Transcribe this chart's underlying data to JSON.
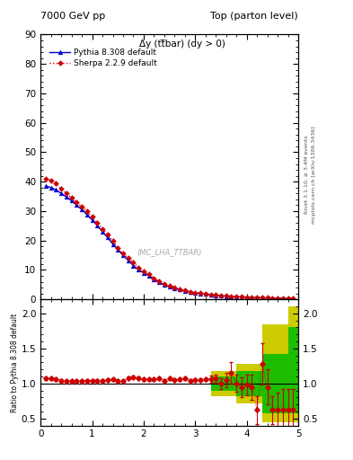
{
  "title_left": "7000 GeV pp",
  "title_right": "Top (parton level)",
  "plot_title": "Δy (tt̅bar) (dy > 0)",
  "ylabel_ratio": "Ratio to Pythia 8.308 default",
  "right_label_top": "Rivet 3.1.10, ≥ 3.4M events",
  "right_label_bot": "mcplots.cern.ch [arXiv:1306.3436]",
  "watermark": "(MC_LHA_TTBAR)",
  "xlim": [
    0,
    5.0
  ],
  "ylim_main": [
    0,
    90
  ],
  "ylim_ratio": [
    0.4,
    2.2
  ],
  "yticks_main": [
    0,
    10,
    20,
    30,
    40,
    50,
    60,
    70,
    80,
    90
  ],
  "yticks_ratio": [
    0.5,
    1.0,
    1.5,
    2.0
  ],
  "pythia_x": [
    0.1,
    0.2,
    0.3,
    0.4,
    0.5,
    0.6,
    0.7,
    0.8,
    0.9,
    1.0,
    1.1,
    1.2,
    1.3,
    1.4,
    1.5,
    1.6,
    1.7,
    1.8,
    1.9,
    2.0,
    2.1,
    2.2,
    2.3,
    2.4,
    2.5,
    2.6,
    2.7,
    2.8,
    2.9,
    3.0,
    3.1,
    3.2,
    3.3,
    3.4,
    3.5,
    3.6,
    3.7,
    3.8,
    3.9,
    4.0,
    4.1,
    4.2,
    4.3,
    4.4,
    4.5,
    4.6,
    4.7,
    4.8,
    4.9
  ],
  "pythia_y": [
    38.5,
    38.0,
    37.2,
    36.0,
    34.8,
    33.5,
    32.0,
    30.5,
    28.8,
    27.0,
    25.0,
    23.0,
    21.0,
    18.8,
    17.0,
    15.0,
    13.2,
    11.5,
    10.0,
    9.0,
    8.0,
    6.8,
    5.8,
    5.0,
    4.2,
    3.8,
    3.3,
    2.8,
    2.5,
    2.2,
    2.0,
    1.8,
    1.6,
    1.4,
    1.2,
    1.1,
    1.0,
    0.9,
    0.8,
    0.7,
    0.65,
    0.6,
    0.55,
    0.5,
    0.45,
    0.4,
    0.35,
    0.3,
    0.25
  ],
  "sherpa_x": [
    0.1,
    0.2,
    0.3,
    0.4,
    0.5,
    0.6,
    0.7,
    0.8,
    0.9,
    1.0,
    1.1,
    1.2,
    1.3,
    1.4,
    1.5,
    1.6,
    1.7,
    1.8,
    1.9,
    2.0,
    2.1,
    2.2,
    2.3,
    2.4,
    2.5,
    2.6,
    2.7,
    2.8,
    2.9,
    3.0,
    3.1,
    3.2,
    3.3,
    3.4,
    3.5,
    3.6,
    3.7,
    3.8,
    3.9,
    4.0,
    4.1,
    4.2,
    4.3,
    4.4,
    4.5,
    4.6,
    4.7,
    4.8,
    4.9
  ],
  "sherpa_y": [
    41.0,
    40.5,
    39.5,
    37.5,
    36.0,
    34.5,
    33.0,
    31.5,
    30.0,
    28.0,
    26.0,
    24.0,
    22.0,
    20.0,
    17.5,
    15.5,
    14.2,
    12.5,
    10.8,
    9.5,
    8.5,
    7.2,
    6.2,
    5.2,
    4.5,
    4.0,
    3.5,
    3.0,
    2.6,
    2.3,
    2.1,
    1.9,
    1.7,
    1.5,
    1.3,
    1.15,
    1.05,
    0.95,
    0.85,
    0.75,
    0.7,
    0.65,
    0.6,
    0.55,
    0.5,
    0.45,
    0.4,
    0.35,
    0.3
  ],
  "ratio_x": [
    0.1,
    0.2,
    0.3,
    0.4,
    0.5,
    0.6,
    0.7,
    0.8,
    0.9,
    1.0,
    1.1,
    1.2,
    1.3,
    1.4,
    1.5,
    1.6,
    1.7,
    1.8,
    1.9,
    2.0,
    2.1,
    2.2,
    2.3,
    2.4,
    2.5,
    2.6,
    2.7,
    2.8,
    2.9,
    3.0,
    3.1,
    3.2,
    3.3,
    3.4,
    3.5,
    3.6,
    3.7,
    3.8,
    3.9,
    4.0,
    4.1,
    4.2,
    4.3,
    4.4,
    4.5,
    4.6,
    4.7,
    4.8,
    4.9
  ],
  "ratio_y": [
    1.07,
    1.07,
    1.06,
    1.04,
    1.03,
    1.03,
    1.03,
    1.03,
    1.04,
    1.04,
    1.04,
    1.04,
    1.05,
    1.06,
    1.03,
    1.03,
    1.08,
    1.09,
    1.08,
    1.06,
    1.06,
    1.06,
    1.07,
    1.04,
    1.07,
    1.05,
    1.06,
    1.07,
    1.04,
    1.05,
    1.05,
    1.06,
    1.06,
    1.07,
    1.0,
    1.05,
    1.15,
    1.0,
    0.95,
    0.98,
    0.95,
    0.62,
    1.28,
    0.95,
    0.62,
    0.62,
    0.62,
    0.62,
    0.62
  ],
  "ratio_err": [
    0.02,
    0.02,
    0.02,
    0.02,
    0.02,
    0.02,
    0.02,
    0.02,
    0.02,
    0.02,
    0.02,
    0.02,
    0.02,
    0.02,
    0.02,
    0.02,
    0.02,
    0.02,
    0.02,
    0.02,
    0.02,
    0.02,
    0.02,
    0.02,
    0.02,
    0.02,
    0.02,
    0.02,
    0.02,
    0.02,
    0.02,
    0.02,
    0.05,
    0.06,
    0.08,
    0.1,
    0.15,
    0.12,
    0.14,
    0.15,
    0.18,
    0.2,
    0.3,
    0.25,
    0.2,
    0.25,
    0.3,
    0.3,
    0.3
  ],
  "yellow_band_edges": [
    3.3,
    3.8,
    4.3,
    4.8,
    5.0
  ],
  "yellow_band_low": [
    0.82,
    0.72,
    0.45,
    0.45,
    0.45
  ],
  "yellow_band_high": [
    1.18,
    1.28,
    1.85,
    2.1,
    2.1
  ],
  "green_band_edges": [
    3.3,
    3.8,
    4.3,
    4.8,
    5.0
  ],
  "green_band_low": [
    0.9,
    0.82,
    0.58,
    0.58,
    0.58
  ],
  "green_band_high": [
    1.1,
    1.18,
    1.42,
    1.8,
    1.8
  ],
  "pythia_color": "#0000cc",
  "sherpa_color": "#cc0000",
  "green_band_color": "#00bb00",
  "yellow_band_color": "#cccc00",
  "background_color": "#ffffff"
}
